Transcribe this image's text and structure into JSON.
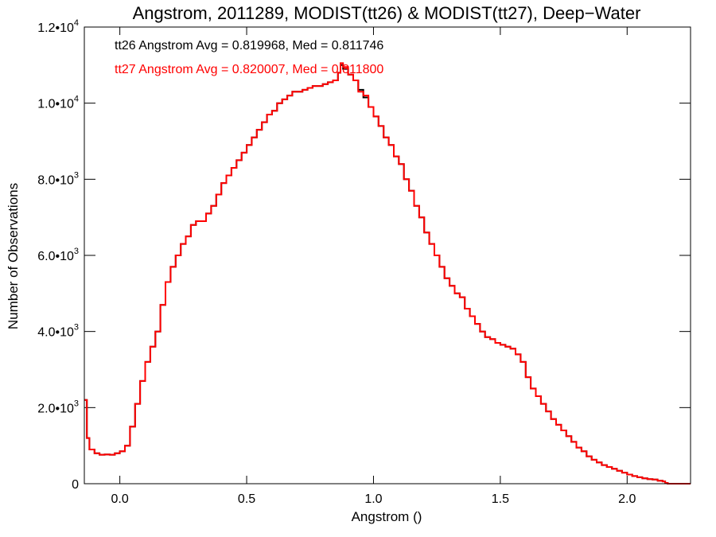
{
  "chart_data": {
    "type": "histogram-step",
    "title": "Angstrom, 2011289, MODIST(tt26) & MODIST(tt27), Deep−Water",
    "xlabel": "Angstrom ()",
    "ylabel": "Number of Observations",
    "xlim": [
      -0.14,
      2.25
    ],
    "ylim": [
      0,
      12000
    ],
    "x_ticks": [
      {
        "value": 0.0,
        "label": "0.0"
      },
      {
        "value": 0.5,
        "label": "0.5"
      },
      {
        "value": 1.0,
        "label": "1.0"
      },
      {
        "value": 1.5,
        "label": "1.5"
      },
      {
        "value": 2.0,
        "label": "2.0"
      }
    ],
    "y_ticks": [
      {
        "value": 0,
        "mant": "0",
        "exp": ""
      },
      {
        "value": 2000,
        "mant": "2.0•10",
        "exp": "3"
      },
      {
        "value": 4000,
        "mant": "4.0•10",
        "exp": "3"
      },
      {
        "value": 6000,
        "mant": "6.0•10",
        "exp": "3"
      },
      {
        "value": 8000,
        "mant": "8.0•10",
        "exp": "3"
      },
      {
        "value": 10000,
        "mant": "1.0•10",
        "exp": "4"
      },
      {
        "value": 12000,
        "mant": "1.2•10",
        "exp": "4"
      }
    ],
    "annotations": [
      {
        "text": "tt26 Angstrom Avg = 0.819968, Med = 0.811746",
        "color": "#000000"
      },
      {
        "text": "tt27 Angstrom Avg = 0.820007, Med = 0.811800",
        "color": "#ff0000"
      }
    ],
    "series": [
      {
        "color": "#000000",
        "points": [
          [
            -0.14,
            2200
          ],
          [
            -0.13,
            1200
          ],
          [
            -0.12,
            900
          ],
          [
            -0.1,
            800
          ],
          [
            -0.08,
            760
          ],
          [
            -0.06,
            770
          ],
          [
            -0.04,
            760
          ],
          [
            -0.02,
            800
          ],
          [
            0.0,
            850
          ],
          [
            0.02,
            1000
          ],
          [
            0.04,
            1500
          ],
          [
            0.06,
            2100
          ],
          [
            0.08,
            2700
          ],
          [
            0.1,
            3200
          ],
          [
            0.12,
            3600
          ],
          [
            0.14,
            4000
          ],
          [
            0.16,
            4700
          ],
          [
            0.18,
            5300
          ],
          [
            0.2,
            5700
          ],
          [
            0.22,
            6000
          ],
          [
            0.24,
            6300
          ],
          [
            0.26,
            6500
          ],
          [
            0.28,
            6800
          ],
          [
            0.3,
            6900
          ],
          [
            0.32,
            6900
          ],
          [
            0.34,
            7100
          ],
          [
            0.36,
            7300
          ],
          [
            0.38,
            7600
          ],
          [
            0.4,
            7900
          ],
          [
            0.42,
            8100
          ],
          [
            0.44,
            8300
          ],
          [
            0.46,
            8500
          ],
          [
            0.48,
            8700
          ],
          [
            0.5,
            8900
          ],
          [
            0.52,
            9100
          ],
          [
            0.54,
            9300
          ],
          [
            0.56,
            9500
          ],
          [
            0.58,
            9700
          ],
          [
            0.6,
            9800
          ],
          [
            0.62,
            10000
          ],
          [
            0.64,
            10100
          ],
          [
            0.66,
            10200
          ],
          [
            0.68,
            10300
          ],
          [
            0.7,
            10300
          ],
          [
            0.72,
            10350
          ],
          [
            0.74,
            10400
          ],
          [
            0.76,
            10450
          ],
          [
            0.78,
            10450
          ],
          [
            0.8,
            10500
          ],
          [
            0.82,
            10550
          ],
          [
            0.84,
            10600
          ],
          [
            0.86,
            10800
          ],
          [
            0.87,
            11000
          ],
          [
            0.88,
            10900
          ],
          [
            0.9,
            10750
          ],
          [
            0.92,
            10600
          ],
          [
            0.94,
            10350
          ],
          [
            0.96,
            10150
          ],
          [
            0.98,
            9900
          ],
          [
            1.0,
            9650
          ],
          [
            1.02,
            9400
          ],
          [
            1.04,
            9100
          ],
          [
            1.06,
            8900
          ],
          [
            1.08,
            8600
          ],
          [
            1.1,
            8400
          ],
          [
            1.12,
            8000
          ],
          [
            1.14,
            7700
          ],
          [
            1.16,
            7300
          ],
          [
            1.18,
            7000
          ],
          [
            1.2,
            6600
          ],
          [
            1.22,
            6300
          ],
          [
            1.24,
            6000
          ],
          [
            1.26,
            5700
          ],
          [
            1.28,
            5400
          ],
          [
            1.3,
            5200
          ],
          [
            1.32,
            5000
          ],
          [
            1.34,
            4900
          ],
          [
            1.36,
            4600
          ],
          [
            1.38,
            4400
          ],
          [
            1.4,
            4200
          ],
          [
            1.42,
            4000
          ],
          [
            1.44,
            3850
          ],
          [
            1.46,
            3800
          ],
          [
            1.48,
            3700
          ],
          [
            1.5,
            3650
          ],
          [
            1.52,
            3600
          ],
          [
            1.54,
            3550
          ],
          [
            1.56,
            3400
          ],
          [
            1.58,
            3200
          ],
          [
            1.6,
            2800
          ],
          [
            1.62,
            2500
          ],
          [
            1.64,
            2300
          ],
          [
            1.66,
            2100
          ],
          [
            1.68,
            1900
          ],
          [
            1.7,
            1700
          ],
          [
            1.72,
            1550
          ],
          [
            1.74,
            1400
          ],
          [
            1.76,
            1250
          ],
          [
            1.78,
            1100
          ],
          [
            1.8,
            950
          ],
          [
            1.82,
            850
          ],
          [
            1.84,
            720
          ],
          [
            1.86,
            630
          ],
          [
            1.88,
            560
          ],
          [
            1.9,
            490
          ],
          [
            1.92,
            440
          ],
          [
            1.94,
            390
          ],
          [
            1.96,
            340
          ],
          [
            1.98,
            290
          ],
          [
            2.0,
            240
          ],
          [
            2.02,
            200
          ],
          [
            2.04,
            170
          ],
          [
            2.06,
            140
          ],
          [
            2.08,
            120
          ],
          [
            2.1,
            110
          ],
          [
            2.12,
            80
          ],
          [
            2.14,
            60
          ],
          [
            2.15,
            20
          ],
          [
            2.16,
            0
          ],
          [
            2.25,
            0
          ]
        ]
      },
      {
        "color": "#ff0000",
        "points": [
          [
            -0.14,
            2200
          ],
          [
            -0.13,
            1200
          ],
          [
            -0.12,
            900
          ],
          [
            -0.1,
            800
          ],
          [
            -0.08,
            760
          ],
          [
            -0.06,
            770
          ],
          [
            -0.04,
            760
          ],
          [
            -0.02,
            800
          ],
          [
            0.0,
            850
          ],
          [
            0.02,
            1000
          ],
          [
            0.04,
            1500
          ],
          [
            0.06,
            2100
          ],
          [
            0.08,
            2700
          ],
          [
            0.1,
            3200
          ],
          [
            0.12,
            3600
          ],
          [
            0.14,
            4000
          ],
          [
            0.16,
            4700
          ],
          [
            0.18,
            5300
          ],
          [
            0.2,
            5700
          ],
          [
            0.22,
            6000
          ],
          [
            0.24,
            6300
          ],
          [
            0.26,
            6500
          ],
          [
            0.28,
            6800
          ],
          [
            0.3,
            6900
          ],
          [
            0.32,
            6900
          ],
          [
            0.34,
            7100
          ],
          [
            0.36,
            7300
          ],
          [
            0.38,
            7600
          ],
          [
            0.4,
            7900
          ],
          [
            0.42,
            8100
          ],
          [
            0.44,
            8300
          ],
          [
            0.46,
            8500
          ],
          [
            0.48,
            8700
          ],
          [
            0.5,
            8900
          ],
          [
            0.52,
            9100
          ],
          [
            0.54,
            9300
          ],
          [
            0.56,
            9500
          ],
          [
            0.58,
            9700
          ],
          [
            0.6,
            9800
          ],
          [
            0.62,
            10000
          ],
          [
            0.64,
            10100
          ],
          [
            0.66,
            10200
          ],
          [
            0.68,
            10300
          ],
          [
            0.7,
            10300
          ],
          [
            0.72,
            10350
          ],
          [
            0.74,
            10400
          ],
          [
            0.76,
            10450
          ],
          [
            0.78,
            10450
          ],
          [
            0.8,
            10500
          ],
          [
            0.82,
            10550
          ],
          [
            0.84,
            10600
          ],
          [
            0.86,
            10800
          ],
          [
            0.87,
            11050
          ],
          [
            0.88,
            10950
          ],
          [
            0.9,
            10750
          ],
          [
            0.92,
            10600
          ],
          [
            0.94,
            10300
          ],
          [
            0.96,
            10200
          ],
          [
            0.98,
            9900
          ],
          [
            1.0,
            9650
          ],
          [
            1.02,
            9400
          ],
          [
            1.04,
            9100
          ],
          [
            1.06,
            8900
          ],
          [
            1.08,
            8600
          ],
          [
            1.1,
            8400
          ],
          [
            1.12,
            8000
          ],
          [
            1.14,
            7700
          ],
          [
            1.16,
            7300
          ],
          [
            1.18,
            7000
          ],
          [
            1.2,
            6600
          ],
          [
            1.22,
            6300
          ],
          [
            1.24,
            6000
          ],
          [
            1.26,
            5700
          ],
          [
            1.28,
            5400
          ],
          [
            1.3,
            5200
          ],
          [
            1.32,
            5000
          ],
          [
            1.34,
            4900
          ],
          [
            1.36,
            4600
          ],
          [
            1.38,
            4400
          ],
          [
            1.4,
            4200
          ],
          [
            1.42,
            4000
          ],
          [
            1.44,
            3850
          ],
          [
            1.46,
            3800
          ],
          [
            1.48,
            3700
          ],
          [
            1.5,
            3650
          ],
          [
            1.52,
            3600
          ],
          [
            1.54,
            3550
          ],
          [
            1.56,
            3400
          ],
          [
            1.58,
            3200
          ],
          [
            1.6,
            2800
          ],
          [
            1.62,
            2500
          ],
          [
            1.64,
            2300
          ],
          [
            1.66,
            2100
          ],
          [
            1.68,
            1900
          ],
          [
            1.7,
            1700
          ],
          [
            1.72,
            1550
          ],
          [
            1.74,
            1400
          ],
          [
            1.76,
            1250
          ],
          [
            1.78,
            1100
          ],
          [
            1.8,
            950
          ],
          [
            1.82,
            850
          ],
          [
            1.84,
            720
          ],
          [
            1.86,
            630
          ],
          [
            1.88,
            560
          ],
          [
            1.9,
            490
          ],
          [
            1.92,
            440
          ],
          [
            1.94,
            390
          ],
          [
            1.96,
            340
          ],
          [
            1.98,
            290
          ],
          [
            2.0,
            240
          ],
          [
            2.02,
            200
          ],
          [
            2.04,
            170
          ],
          [
            2.06,
            140
          ],
          [
            2.08,
            120
          ],
          [
            2.1,
            110
          ],
          [
            2.12,
            80
          ],
          [
            2.14,
            60
          ],
          [
            2.15,
            20
          ],
          [
            2.16,
            0
          ],
          [
            2.25,
            0
          ]
        ]
      }
    ]
  }
}
